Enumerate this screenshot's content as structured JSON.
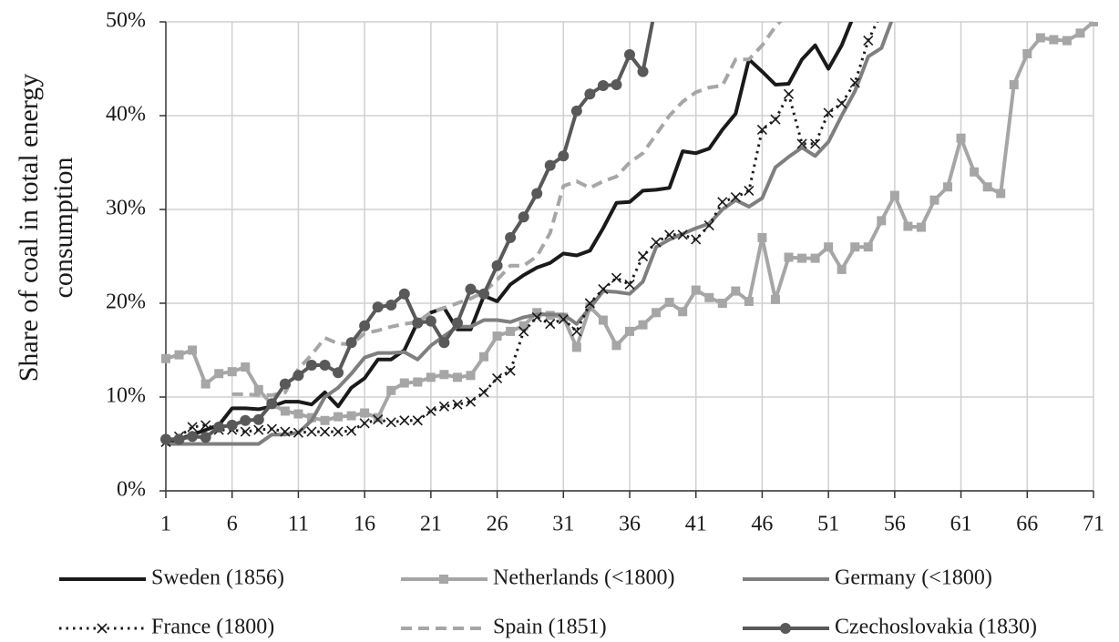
{
  "chart_data": {
    "type": "line",
    "ylabel": [
      "Share of coal in total energy",
      "consumption"
    ],
    "x": [
      1,
      2,
      3,
      4,
      5,
      6,
      7,
      8,
      9,
      10,
      11,
      12,
      13,
      14,
      15,
      16,
      17,
      18,
      19,
      20,
      21,
      22,
      23,
      24,
      25,
      26,
      27,
      28,
      29,
      30,
      31,
      32,
      33,
      34,
      35,
      36,
      37,
      38,
      39,
      40,
      41,
      42,
      43,
      44,
      45,
      46,
      47,
      48,
      49,
      50,
      51,
      52,
      53,
      54,
      55,
      56,
      57,
      58,
      59,
      60,
      61,
      62,
      63,
      64,
      65,
      66,
      67,
      68,
      69,
      70,
      71
    ],
    "xlim": [
      1,
      71
    ],
    "xticks": [
      1,
      6,
      11,
      16,
      21,
      26,
      31,
      36,
      41,
      46,
      51,
      56,
      61,
      66,
      71
    ],
    "ylim": [
      0,
      50
    ],
    "yticks": [
      {
        "value": 0,
        "label": "0%"
      },
      {
        "value": 10,
        "label": "10%"
      },
      {
        "value": 20,
        "label": "20%"
      },
      {
        "value": 30,
        "label": "30%"
      },
      {
        "value": 40,
        "label": "40%"
      },
      {
        "value": 50,
        "label": "50%"
      }
    ],
    "grid": true,
    "legend": "bottom",
    "series": [
      {
        "name": "Sweden (1856)",
        "color": "#1a1a1a",
        "dash": "solid",
        "marker": "none",
        "values": [
          5,
          5.5,
          6,
          6.5,
          7,
          8.8,
          8.8,
          8.7,
          9,
          9.5,
          9.5,
          9.2,
          10.5,
          9,
          11,
          12,
          14,
          14,
          15,
          18,
          19,
          19.5,
          17.2,
          17.2,
          20.8,
          20.2,
          22,
          23,
          23.8,
          24.3,
          25.3,
          25.1,
          25.6,
          28,
          30.7,
          30.8,
          32,
          32.1,
          32.3,
          36.2,
          36,
          36.5,
          38.5,
          40.2,
          46,
          44.7,
          43.3,
          43.4,
          46,
          47.5,
          45,
          47.5,
          51,
          null,
          null,
          null,
          null,
          null,
          null,
          null,
          null,
          null,
          null,
          null,
          null,
          null,
          null,
          null,
          null,
          null,
          null
        ]
      },
      {
        "name": "Netherlands (<1800)",
        "color": "#a6a6a6",
        "dash": "solid",
        "marker": "square",
        "values": [
          14.1,
          14.5,
          15,
          11.4,
          12.5,
          12.7,
          13.2,
          10.8,
          9.2,
          8.5,
          8.2,
          7.8,
          7.5,
          7.9,
          8,
          8.3,
          7.8,
          10.7,
          11.5,
          11.6,
          12.1,
          12.4,
          12.1,
          12.3,
          14.3,
          16.5,
          17,
          17.6,
          19,
          18.7,
          18.5,
          15.3,
          19.6,
          18.2,
          15.5,
          17,
          17.7,
          19,
          20.1,
          19.1,
          21.4,
          20.6,
          20,
          21.3,
          20.2,
          27,
          20.4,
          24.9,
          24.8,
          24.8,
          26,
          23.6,
          26,
          26,
          28.8,
          31.5,
          28.2,
          28.1,
          31,
          32.4,
          37.6,
          34,
          32.4,
          31.7,
          43.3,
          46.6,
          48.3,
          48.1,
          48,
          48.8,
          50
        ]
      },
      {
        "name": "Germany (<1800)",
        "color": "#7f7f7f",
        "dash": "solid",
        "marker": "none",
        "values": [
          5,
          5,
          5,
          5,
          5,
          5,
          5,
          5,
          6,
          6,
          6.2,
          7.5,
          10,
          11,
          12.5,
          14.2,
          14.7,
          14.7,
          14.8,
          14,
          15.5,
          16.5,
          17.5,
          17.5,
          18.2,
          18.2,
          18,
          18.5,
          18.8,
          18.8,
          18.8,
          17.8,
          19.5,
          21.3,
          21.2,
          21,
          22.3,
          26,
          26.8,
          27.4,
          28,
          28.5,
          30,
          31,
          30.3,
          31.2,
          34.5,
          35.6,
          36.6,
          35.7,
          37.2,
          40,
          42.6,
          46.3,
          47.2,
          51,
          null,
          null,
          null,
          null,
          null,
          null,
          null,
          null,
          null,
          null,
          null,
          null,
          null,
          null,
          null
        ]
      },
      {
        "name": "France (1800)",
        "color": "#1a1a1a",
        "dash": "dotted",
        "marker": "cross",
        "values": [
          5.2,
          5.8,
          6.8,
          7,
          6.5,
          6.5,
          6.3,
          6.5,
          6.6,
          6.3,
          6.2,
          6.3,
          6.3,
          6.3,
          6.4,
          7.2,
          7.6,
          7.3,
          7.5,
          7.5,
          8.5,
          9,
          9.2,
          9.5,
          10.5,
          12,
          12.8,
          17,
          18.5,
          17.8,
          18.3,
          17,
          20,
          21.5,
          22.7,
          22,
          25,
          26.5,
          27.3,
          27.3,
          26.8,
          28.3,
          30.8,
          31.3,
          32,
          38.5,
          39.6,
          42.3,
          37,
          37,
          40.3,
          41.3,
          43.5,
          48,
          51,
          null,
          null,
          null,
          null,
          null,
          null,
          null,
          null,
          null,
          null,
          null,
          null,
          null,
          null,
          null,
          null
        ]
      },
      {
        "name": "Spain (1851)",
        "color": "#a6a6a6",
        "dash": "dashed",
        "marker": "none",
        "values": [
          null,
          null,
          null,
          null,
          null,
          10.3,
          10.3,
          10.2,
          10.2,
          10.5,
          13,
          14.5,
          16.3,
          15.7,
          15.6,
          16.8,
          17.1,
          17.5,
          17.8,
          18,
          19,
          19.5,
          20,
          20.5,
          21.2,
          22.5,
          24,
          24,
          25,
          27.5,
          32.5,
          33,
          32.3,
          33,
          33.5,
          35,
          36,
          38,
          40,
          41.5,
          42.5,
          43,
          43.2,
          46,
          46,
          47.5,
          49.5,
          51,
          null,
          null,
          null,
          null,
          null,
          null,
          null,
          null,
          null,
          null,
          null,
          null,
          null,
          null,
          null,
          null,
          null,
          null,
          null,
          null,
          null,
          null,
          null
        ]
      },
      {
        "name": "Czechoslovakia (1830)",
        "color": "#595959",
        "dash": "solid",
        "marker": "circle",
        "values": [
          5.5,
          5.5,
          5.8,
          5.7,
          6.8,
          7,
          7.5,
          7.6,
          9.3,
          11.4,
          12.3,
          13.4,
          13.4,
          12.6,
          15.8,
          17.6,
          19.6,
          19.8,
          21,
          17.9,
          18.1,
          15.8,
          17.9,
          21.5,
          21,
          24,
          27,
          29.2,
          31.7,
          34.7,
          35.7,
          40.5,
          42.3,
          43.2,
          43.3,
          46.5,
          44.7,
          52,
          null,
          null,
          null,
          null,
          null,
          null,
          null,
          null,
          null,
          null,
          null,
          null,
          null,
          null,
          null,
          null,
          null,
          null,
          null,
          null,
          null,
          null,
          null,
          null,
          null,
          null,
          null,
          null,
          null,
          null,
          null,
          null,
          null
        ]
      }
    ]
  }
}
